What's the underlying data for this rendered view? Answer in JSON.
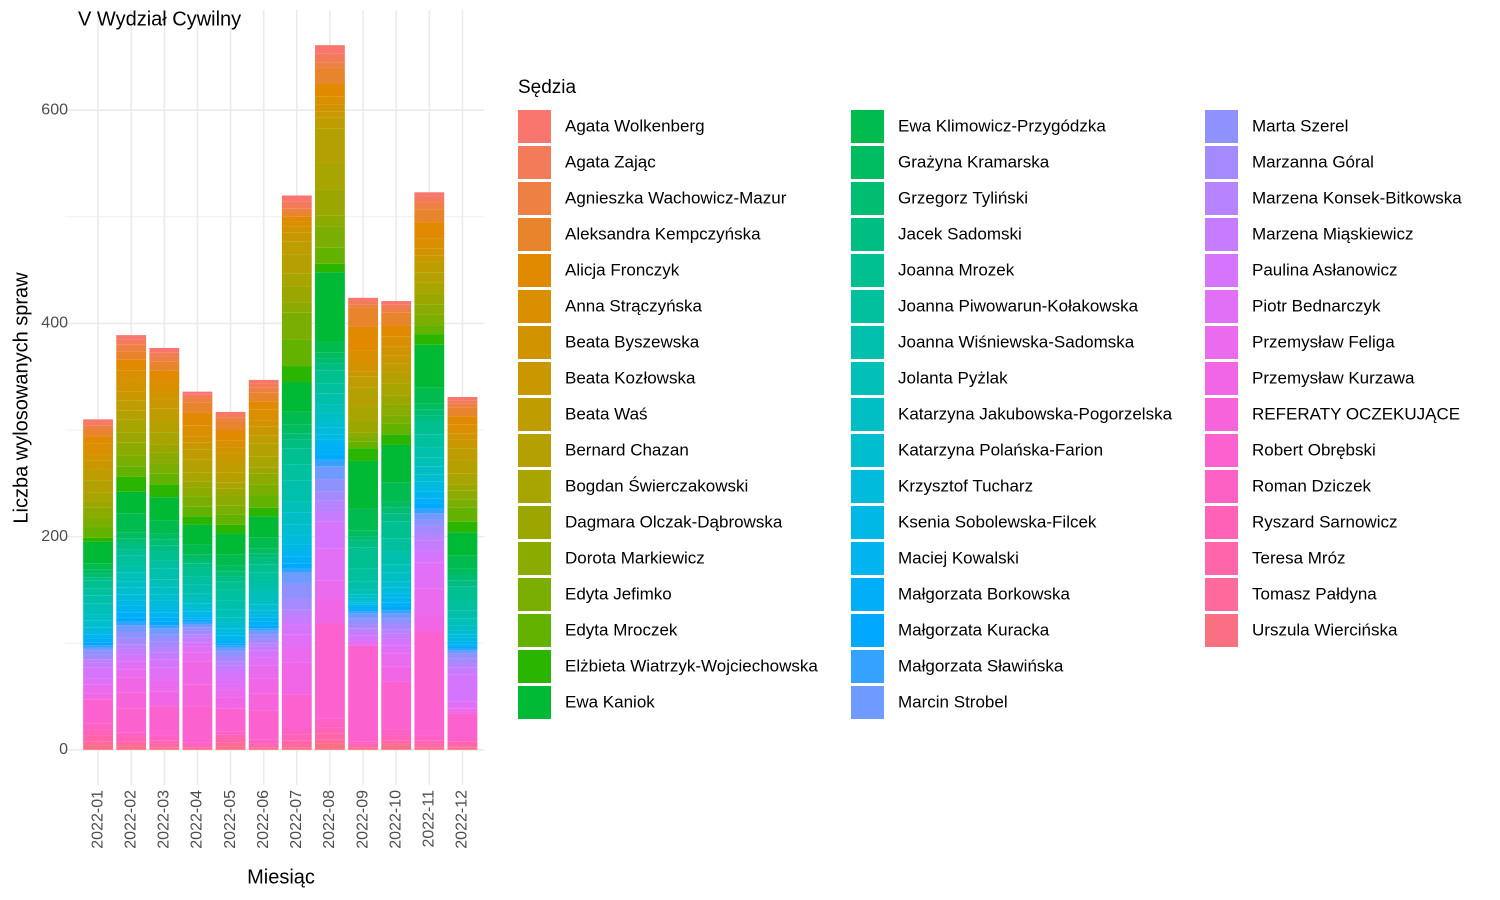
{
  "chart_data": {
    "type": "bar",
    "stacked": true,
    "title": "V Wydział Cywilny",
    "x_label": "Miesiąc",
    "y_label": "Liczba wylosowanych spraw",
    "legend_title": "Sędzia",
    "legend_position": "right",
    "grid": true,
    "ylim": [
      -33,
      694
    ],
    "yticks": [
      0,
      200,
      400,
      600
    ],
    "y_minor_ticks": [
      100,
      300,
      500
    ],
    "categories": [
      "2022-01",
      "2022-02",
      "2022-03",
      "2022-04",
      "2022-05",
      "2022-06",
      "2022-07",
      "2022-08",
      "2022-09",
      "2022-10",
      "2022-11",
      "2022-12"
    ],
    "series": [
      {
        "name": "Agata Wolkenberg",
        "color": "#F8766D",
        "values": [
          3,
          4,
          4,
          3,
          2,
          3,
          6,
          8,
          3,
          3,
          4,
          3
        ]
      },
      {
        "name": "Agata Zając",
        "color": "#F37B59",
        "values": [
          3,
          5,
          4,
          3,
          3,
          4,
          6,
          8,
          3,
          4,
          6,
          3
        ]
      },
      {
        "name": "Agnieszka Wachowicz-Mazur",
        "color": "#EE8044",
        "values": [
          4,
          6,
          5,
          4,
          4,
          5,
          3,
          5,
          3,
          4,
          6,
          4
        ]
      },
      {
        "name": "Aleksandra Kempczyńska",
        "color": "#E8852C",
        "values": [
          6,
          8,
          8,
          10,
          8,
          8,
          5,
          15,
          18,
          12,
          12,
          8
        ]
      },
      {
        "name": "Alicja Fronczyk",
        "color": "#E18A00",
        "values": [
          7,
          10,
          10,
          12,
          10,
          8,
          4,
          12,
          22,
          10,
          15,
          8
        ]
      },
      {
        "name": "Anna Strączyńska",
        "color": "#DA8F00",
        "values": [
          10,
          10,
          8,
          10,
          6,
          10,
          5,
          8,
          14,
          10,
          10,
          8
        ]
      },
      {
        "name": "Beata Byszewska",
        "color": "#D29300",
        "values": [
          6,
          10,
          8,
          6,
          6,
          6,
          6,
          6,
          6,
          8,
          6,
          6
        ]
      },
      {
        "name": "Beata Kozłowska",
        "color": "#C99800",
        "values": [
          8,
          8,
          10,
          6,
          8,
          8,
          8,
          6,
          5,
          8,
          6,
          8
        ]
      },
      {
        "name": "Beata Waś",
        "color": "#BF9C00",
        "values": [
          10,
          10,
          12,
          10,
          10,
          8,
          12,
          10,
          10,
          8,
          10,
          12
        ]
      },
      {
        "name": "Bernard Chazan",
        "color": "#B4A000",
        "values": [
          12,
          8,
          10,
          12,
          9,
          12,
          18,
          32,
          18,
          10,
          10,
          12
        ]
      },
      {
        "name": "Bogdan Świerczakowski",
        "color": "#A8A400",
        "values": [
          8,
          12,
          12,
          8,
          6,
          10,
          12,
          25,
          14,
          12,
          10,
          10
        ]
      },
      {
        "name": "Dagmara Olczak-Dąbrowska",
        "color": "#9BA700",
        "values": [
          6,
          10,
          7,
          6,
          6,
          6,
          15,
          25,
          10,
          8,
          10,
          6
        ]
      },
      {
        "name": "Dorota Markiewicz",
        "color": "#8CAB00",
        "values": [
          10,
          12,
          10,
          8,
          10,
          10,
          10,
          10,
          5,
          10,
          10,
          8
        ]
      },
      {
        "name": "Edyta Jefimko",
        "color": "#7AAE00",
        "values": [
          8,
          10,
          10,
          10,
          8,
          10,
          25,
          20,
          4,
          8,
          10,
          8
        ]
      },
      {
        "name": "Edyta Mroczek",
        "color": "#64B200",
        "values": [
          10,
          10,
          10,
          9,
          10,
          12,
          25,
          15,
          6,
          10,
          8,
          13
        ]
      },
      {
        "name": "Elżbieta Wiatrzyk-Wojciechowska",
        "color": "#2AB600",
        "values": [
          4,
          14,
          12,
          8,
          8,
          8,
          15,
          8,
          12,
          10,
          10,
          10
        ]
      },
      {
        "name": "Ewa Kaniok",
        "color": "#00B934",
        "values": [
          20,
          20,
          22,
          18,
          20,
          20,
          28,
          65,
          45,
          35,
          40,
          22
        ]
      },
      {
        "name": "Ewa Klimowicz-Przygódzka",
        "color": "#00BB4E",
        "values": [
          6,
          18,
          12,
          10,
          10,
          10,
          12,
          10,
          20,
          18,
          15,
          12
        ]
      },
      {
        "name": "Grażyna Kramarska",
        "color": "#00BC61",
        "values": [
          4,
          6,
          6,
          4,
          6,
          5,
          8,
          6,
          6,
          6,
          6,
          6
        ]
      },
      {
        "name": "Grzegorz Tyliński",
        "color": "#00BD72",
        "values": [
          3,
          4,
          5,
          4,
          4,
          4,
          6,
          5,
          4,
          5,
          5,
          5
        ]
      },
      {
        "name": "Jacek Sadomski",
        "color": "#00BE82",
        "values": [
          3,
          6,
          6,
          4,
          5,
          6,
          8,
          6,
          6,
          8,
          6,
          6
        ]
      },
      {
        "name": "Joanna Mrozek",
        "color": "#00BF90",
        "values": [
          8,
          6,
          8,
          8,
          8,
          8,
          15,
          12,
          20,
          16,
          12,
          12
        ]
      },
      {
        "name": "Joanna Piwowarun-Kołakowska",
        "color": "#00C09E",
        "values": [
          6,
          10,
          8,
          8,
          10,
          10,
          15,
          10,
          12,
          12,
          12,
          10
        ]
      },
      {
        "name": "Joanna Wiśniewska-Sadomska",
        "color": "#00C0AB",
        "values": [
          8,
          6,
          10,
          8,
          8,
          7,
          20,
          10,
          8,
          12,
          10,
          8
        ]
      },
      {
        "name": "Jolanta Pyżlak",
        "color": "#00C0B8",
        "values": [
          10,
          8,
          8,
          6,
          8,
          8,
          10,
          8,
          4,
          8,
          8,
          6
        ]
      },
      {
        "name": "Katarzyna Jakubowska-Pogorzelska",
        "color": "#00BFC4",
        "values": [
          6,
          6,
          6,
          4,
          5,
          5,
          12,
          8,
          3,
          8,
          8,
          5
        ]
      },
      {
        "name": "Katarzyna Polańska-Farion",
        "color": "#00BDD0",
        "values": [
          6,
          6,
          6,
          4,
          5,
          5,
          10,
          6,
          3,
          6,
          6,
          4
        ]
      },
      {
        "name": "Krzysztof Tucharz",
        "color": "#00BBDB",
        "values": [
          4,
          6,
          6,
          3,
          4,
          4,
          8,
          6,
          2,
          5,
          5,
          3
        ]
      },
      {
        "name": "Ksenia Sobolewska-Filcek",
        "color": "#00B8E5",
        "values": [
          3,
          5,
          5,
          3,
          3,
          3,
          6,
          5,
          2,
          4,
          5,
          3
        ]
      },
      {
        "name": "Maciej Kowalski",
        "color": "#00B4EF",
        "values": [
          4,
          6,
          5,
          3,
          4,
          4,
          6,
          6,
          2,
          5,
          6,
          3
        ]
      },
      {
        "name": "Małgorzata Borkowska",
        "color": "#00AFF8",
        "values": [
          3,
          5,
          4,
          2,
          3,
          3,
          6,
          8,
          2,
          4,
          5,
          2
        ]
      },
      {
        "name": "Małgorzata Kuracka",
        "color": "#00A9FF",
        "values": [
          3,
          4,
          3,
          2,
          2,
          3,
          5,
          5,
          2,
          3,
          5,
          2
        ]
      },
      {
        "name": "Małgorzata Sławińska",
        "color": "#35A2FF",
        "values": [
          2,
          3,
          3,
          2,
          2,
          2,
          4,
          6,
          2,
          3,
          4,
          2
        ]
      },
      {
        "name": "Marcin Strobel",
        "color": "#6F9AFF",
        "values": [
          3,
          6,
          6,
          3,
          4,
          4,
          10,
          12,
          5,
          5,
          6,
          3
        ]
      },
      {
        "name": "Marta Szerel",
        "color": "#8F91FF",
        "values": [
          4,
          6,
          6,
          3,
          4,
          4,
          14,
          12,
          5,
          5,
          6,
          4
        ]
      },
      {
        "name": "Marzanna Góral",
        "color": "#A58AFF",
        "values": [
          4,
          6,
          6,
          4,
          5,
          4,
          10,
          8,
          4,
          5,
          8,
          5
        ]
      },
      {
        "name": "Marzena Konsek-Bitkowska",
        "color": "#B883FF",
        "values": [
          3,
          4,
          5,
          3,
          4,
          3,
          6,
          10,
          3,
          4,
          6,
          4
        ]
      },
      {
        "name": "Marzena Miąskiewicz",
        "color": "#C77CFF",
        "values": [
          5,
          6,
          6,
          4,
          6,
          4,
          8,
          10,
          4,
          5,
          10,
          6
        ]
      },
      {
        "name": "Paulina Asłanowicz",
        "color": "#D575FE",
        "values": [
          10,
          6,
          8,
          4,
          8,
          6,
          10,
          25,
          4,
          6,
          10,
          26
        ]
      },
      {
        "name": "Piotr Bednarczyk",
        "color": "#E170F6",
        "values": [
          6,
          8,
          12,
          6,
          8,
          8,
          12,
          30,
          5,
          8,
          25,
          6
        ]
      },
      {
        "name": "Przemysław Feliga",
        "color": "#EA6BEE",
        "values": [
          8,
          7,
          10,
          8,
          8,
          12,
          14,
          18,
          0,
          12,
          25,
          3
        ]
      },
      {
        "name": "Przemysław Kurzawa",
        "color": "#F166E4",
        "values": [
          6,
          14,
          14,
          22,
          10,
          14,
          30,
          22,
          0,
          14,
          15,
          2
        ]
      },
      {
        "name": "REFERATY OCZEKUJĄCE",
        "color": "#F763DA",
        "values": [
          0,
          15,
          0,
          20,
          0,
          16,
          0,
          0,
          0,
          0,
          0,
          0
        ]
      },
      {
        "name": "Robert Obrębski",
        "color": "#FB61CF",
        "values": [
          22,
          23,
          28,
          34,
          22,
          27,
          32,
          90,
          90,
          45,
          98,
          22
        ]
      },
      {
        "name": "Roman Dziczek",
        "color": "#FD61C3",
        "values": [
          6,
          4,
          4,
          3,
          3,
          4,
          6,
          8,
          2,
          6,
          4,
          4
        ]
      },
      {
        "name": "Ryszard Sarnowicz",
        "color": "#FF62B6",
        "values": [
          6,
          4,
          3,
          2,
          2,
          2,
          5,
          6,
          2,
          4,
          3,
          3
        ]
      },
      {
        "name": "Teresa Mróz",
        "color": "#FF65A9",
        "values": [
          5,
          3,
          2,
          0,
          5,
          2,
          4,
          5,
          2,
          3,
          2,
          2
        ]
      },
      {
        "name": "Tomasz Pałdyna",
        "color": "#FF699B",
        "values": [
          4,
          2,
          2,
          0,
          4,
          0,
          3,
          4,
          0,
          2,
          2,
          1
        ]
      },
      {
        "name": "Urszula Wiercińska",
        "color": "#FA7083",
        "values": [
          4,
          3,
          2,
          2,
          3,
          2,
          2,
          6,
          2,
          4,
          2,
          2
        ]
      }
    ]
  }
}
